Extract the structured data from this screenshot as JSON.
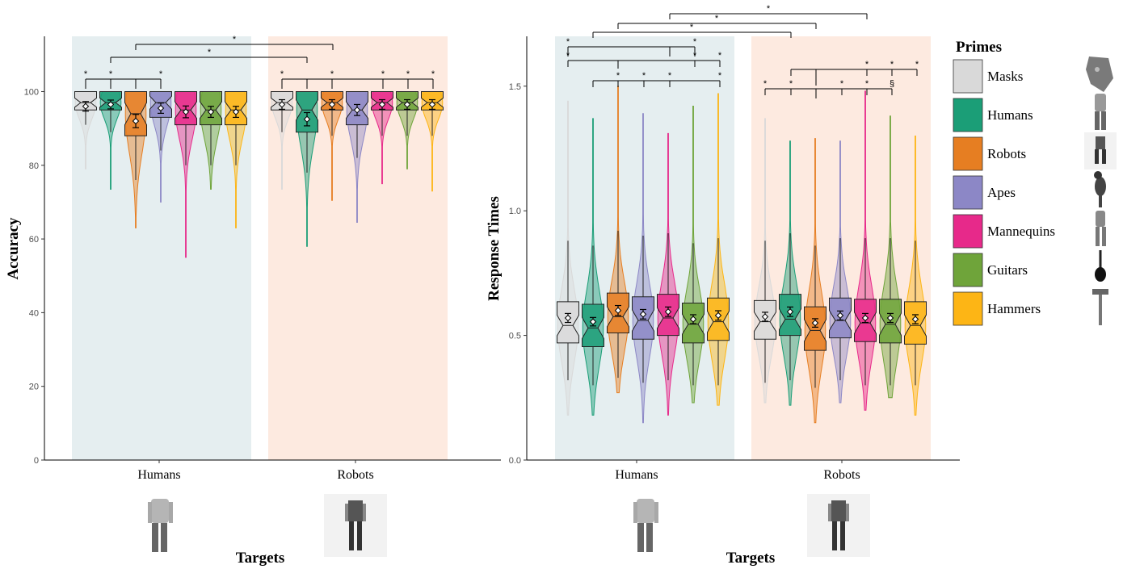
{
  "legend": {
    "title": "Primes",
    "items": [
      {
        "label": "Masks",
        "color": "#d9d9d9",
        "icon": "mask-icon"
      },
      {
        "label": "Humans",
        "color": "#1b9e77",
        "icon": "human-icon"
      },
      {
        "label": "Robots",
        "color": "#e67e22",
        "icon": "robot-icon"
      },
      {
        "label": "Apes",
        "color": "#8c87c6",
        "icon": "ape-icon"
      },
      {
        "label": "Mannequins",
        "color": "#e7298a",
        "icon": "mannequin-icon"
      },
      {
        "label": "Guitars",
        "color": "#6fa43a",
        "icon": "guitar-icon"
      },
      {
        "label": "Hammers",
        "color": "#fdb515",
        "icon": "hammer-icon"
      }
    ]
  },
  "panel_bg": {
    "humans": "#e5eef0",
    "robots": "#fdeae0"
  },
  "sig_marks": {
    "star": "*",
    "section": "§"
  },
  "chart_data": [
    {
      "type": "violin-box",
      "ylabel": "Accuracy",
      "xlabel": "Targets",
      "ylim": [
        0,
        115
      ],
      "yticks": [
        0,
        20,
        40,
        60,
        80,
        100
      ],
      "categories": [
        "Humans",
        "Robots"
      ],
      "primes": [
        "Masks",
        "Humans",
        "Robots",
        "Apes",
        "Mannequins",
        "Guitars",
        "Hammers"
      ],
      "groups": [
        {
          "target": "Humans",
          "boxes": [
            {
              "prime": "Masks",
              "q1": 95,
              "median": 97,
              "q3": 100,
              "mean": 96,
              "ci": 1.3,
              "wmin": 91,
              "vmin": 79,
              "vmax": 100
            },
            {
              "prime": "Humans",
              "q1": 95,
              "median": 97,
              "q3": 100,
              "mean": 96.5,
              "ci": 1.2,
              "wmin": 89,
              "vmin": 73.5,
              "vmax": 100
            },
            {
              "prime": "Robots",
              "q1": 88,
              "median": 94,
              "q3": 100,
              "mean": 92,
              "ci": 1.8,
              "wmin": 76,
              "vmin": 63,
              "vmax": 100
            },
            {
              "prime": "Apes",
              "q1": 93,
              "median": 97,
              "q3": 100,
              "mean": 95.5,
              "ci": 1.4,
              "wmin": 84,
              "vmin": 70,
              "vmax": 100
            },
            {
              "prime": "Mannequins",
              "q1": 91,
              "median": 95,
              "q3": 100,
              "mean": 94.5,
              "ci": 1.6,
              "wmin": 80,
              "vmin": 55,
              "vmax": 100
            },
            {
              "prime": "Guitars",
              "q1": 91,
              "median": 95,
              "q3": 100,
              "mean": 94.5,
              "ci": 1.5,
              "wmin": 80,
              "vmin": 73.5,
              "vmax": 100
            },
            {
              "prime": "Hammers",
              "q1": 91,
              "median": 95,
              "q3": 100,
              "mean": 94.5,
              "ci": 1.5,
              "wmin": 80,
              "vmin": 63,
              "vmax": 100
            }
          ]
        },
        {
          "target": "Robots",
          "boxes": [
            {
              "prime": "Masks",
              "q1": 95,
              "median": 97,
              "q3": 100,
              "mean": 96.5,
              "ci": 1.3,
              "wmin": 89,
              "vmin": 73.5,
              "vmax": 100
            },
            {
              "prime": "Humans",
              "q1": 89,
              "median": 95,
              "q3": 100,
              "mean": 92.5,
              "ci": 1.8,
              "wmin": 78,
              "vmin": 58,
              "vmax": 100
            },
            {
              "prime": "Robots",
              "q1": 95,
              "median": 97,
              "q3": 100,
              "mean": 96.5,
              "ci": 1.3,
              "wmin": 88,
              "vmin": 70.5,
              "vmax": 100
            },
            {
              "prime": "Apes",
              "q1": 91,
              "median": 95,
              "q3": 100,
              "mean": 95,
              "ci": 1.5,
              "wmin": 82,
              "vmin": 64.5,
              "vmax": 100
            },
            {
              "prime": "Mannequins",
              "q1": 95,
              "median": 97,
              "q3": 100,
              "mean": 96.5,
              "ci": 1.3,
              "wmin": 88,
              "vmin": 75,
              "vmax": 100
            },
            {
              "prime": "Guitars",
              "q1": 95,
              "median": 97,
              "q3": 100,
              "mean": 96.5,
              "ci": 1.3,
              "wmin": 88,
              "vmin": 79,
              "vmax": 100
            },
            {
              "prime": "Hammers",
              "q1": 95,
              "median": 97,
              "q3": 100,
              "mean": 96.5,
              "ci": 1.3,
              "wmin": 88,
              "vmin": 73,
              "vmax": 100
            }
          ]
        }
      ]
    },
    {
      "type": "violin-box",
      "ylabel": "Response Times",
      "xlabel": "Targets",
      "ylim": [
        0,
        1.7
      ],
      "yticks": [
        0.0,
        0.5,
        1.0,
        1.5
      ],
      "ytick_labels": [
        "0.0",
        "0.5",
        "1.0",
        "1.5"
      ],
      "categories": [
        "Humans",
        "Robots"
      ],
      "primes": [
        "Masks",
        "Humans",
        "Robots",
        "Apes",
        "Mannequins",
        "Guitars",
        "Hammers"
      ],
      "groups": [
        {
          "target": "Humans",
          "boxes": [
            {
              "prime": "Masks",
              "q1": 0.47,
              "median": 0.54,
              "q3": 0.635,
              "mean": 0.57,
              "ci": 0.018,
              "wmin": 0.32,
              "wmax": 0.88,
              "vmin": 0.18,
              "vmax": 1.44
            },
            {
              "prime": "Humans",
              "q1": 0.455,
              "median": 0.53,
              "q3": 0.625,
              "mean": 0.555,
              "ci": 0.017,
              "wmin": 0.3,
              "wmax": 0.86,
              "vmin": 0.18,
              "vmax": 1.37
            },
            {
              "prime": "Robots",
              "q1": 0.51,
              "median": 0.575,
              "q3": 0.67,
              "mean": 0.6,
              "ci": 0.02,
              "wmin": 0.33,
              "wmax": 0.92,
              "vmin": 0.27,
              "vmax": 1.5
            },
            {
              "prime": "Apes",
              "q1": 0.485,
              "median": 0.56,
              "q3": 0.655,
              "mean": 0.585,
              "ci": 0.019,
              "wmin": 0.31,
              "wmax": 0.9,
              "vmin": 0.15,
              "vmax": 1.39
            },
            {
              "prime": "Mannequins",
              "q1": 0.5,
              "median": 0.57,
              "q3": 0.665,
              "mean": 0.595,
              "ci": 0.019,
              "wmin": 0.32,
              "wmax": 0.91,
              "vmin": 0.18,
              "vmax": 1.31
            },
            {
              "prime": "Guitars",
              "q1": 0.47,
              "median": 0.545,
              "q3": 0.63,
              "mean": 0.565,
              "ci": 0.018,
              "wmin": 0.3,
              "wmax": 0.87,
              "vmin": 0.23,
              "vmax": 1.42
            },
            {
              "prime": "Hammers",
              "q1": 0.48,
              "median": 0.555,
              "q3": 0.65,
              "mean": 0.58,
              "ci": 0.019,
              "wmin": 0.3,
              "wmax": 0.89,
              "vmin": 0.22,
              "vmax": 1.47
            }
          ]
        },
        {
          "target": "Robots",
          "boxes": [
            {
              "prime": "Masks",
              "q1": 0.485,
              "median": 0.555,
              "q3": 0.64,
              "mean": 0.575,
              "ci": 0.018,
              "wmin": 0.31,
              "wmax": 0.88,
              "vmin": 0.23,
              "vmax": 1.37
            },
            {
              "prime": "Humans",
              "q1": 0.5,
              "median": 0.565,
              "q3": 0.665,
              "mean": 0.595,
              "ci": 0.019,
              "wmin": 0.32,
              "wmax": 0.91,
              "vmin": 0.22,
              "vmax": 1.28
            },
            {
              "prime": "Robots",
              "q1": 0.44,
              "median": 0.52,
              "q3": 0.615,
              "mean": 0.55,
              "ci": 0.017,
              "wmin": 0.29,
              "wmax": 0.86,
              "vmin": 0.15,
              "vmax": 1.29
            },
            {
              "prime": "Apes",
              "q1": 0.49,
              "median": 0.56,
              "q3": 0.65,
              "mean": 0.58,
              "ci": 0.018,
              "wmin": 0.32,
              "wmax": 0.89,
              "vmin": 0.23,
              "vmax": 1.28
            },
            {
              "prime": "Mannequins",
              "q1": 0.475,
              "median": 0.55,
              "q3": 0.645,
              "mean": 0.57,
              "ci": 0.018,
              "wmin": 0.3,
              "wmax": 0.89,
              "vmin": 0.2,
              "vmax": 1.48
            },
            {
              "prime": "Guitars",
              "q1": 0.47,
              "median": 0.545,
              "q3": 0.645,
              "mean": 0.57,
              "ci": 0.018,
              "wmin": 0.3,
              "wmax": 0.89,
              "vmin": 0.25,
              "vmax": 1.38
            },
            {
              "prime": "Hammers",
              "q1": 0.465,
              "median": 0.54,
              "q3": 0.635,
              "mean": 0.565,
              "ci": 0.018,
              "wmin": 0.3,
              "wmax": 0.88,
              "vmin": 0.18,
              "vmax": 1.3
            }
          ]
        }
      ]
    }
  ]
}
